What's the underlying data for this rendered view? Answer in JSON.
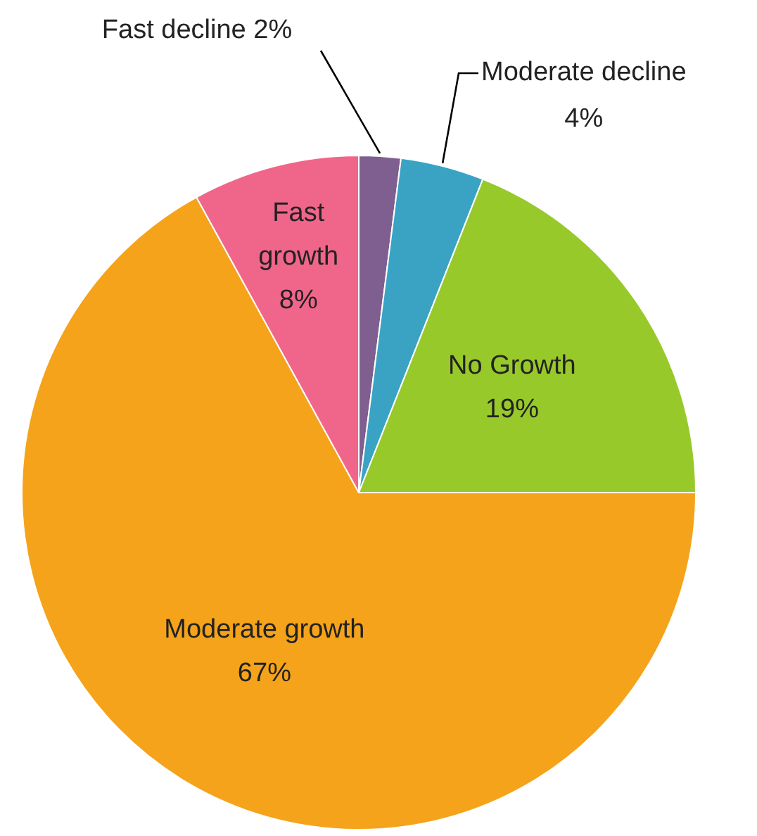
{
  "chart_data": {
    "type": "pie",
    "categories": [
      "Fast decline",
      "Moderate decline",
      "No Growth",
      "Moderate growth",
      "Fast growth"
    ],
    "values": [
      2,
      4,
      19,
      67,
      8
    ],
    "colors": [
      "#7f5f8f",
      "#3aa3c4",
      "#98c92a",
      "#f5a31a",
      "#f0668a"
    ],
    "value_labels": [
      "2%",
      "4%",
      "19%",
      "67%",
      "8%"
    ],
    "legend": false
  }
}
